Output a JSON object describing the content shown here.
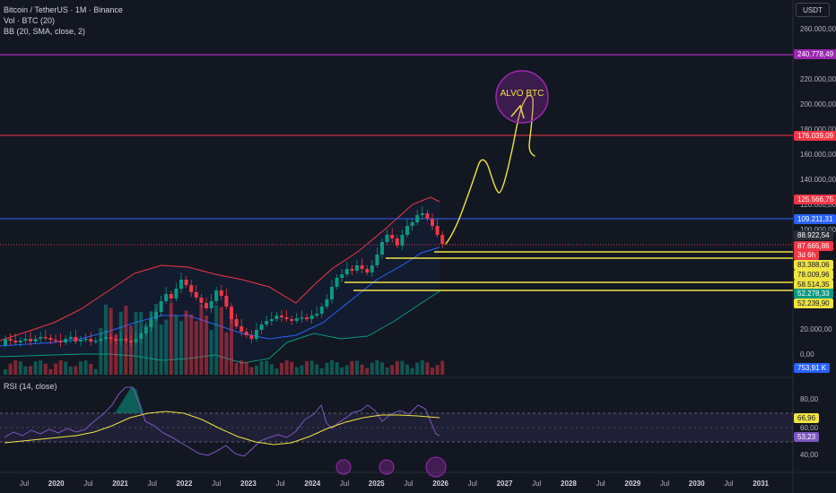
{
  "header": {
    "symbol": "Bitcoin / TetherUS · 1M · Binance",
    "volume": "Vol · BTC (20)",
    "bollinger": "BB (20, SMA, close, 2)",
    "currency": "USDT"
  },
  "rsi": {
    "label": "RSI (14, close)"
  },
  "annotation": {
    "label": "ALVO BTC"
  },
  "price_axis_ticks": [
    "260.000,00",
    "220.000,00",
    "200.000,00",
    "180.000,00",
    "160.000,00",
    "140.000,00",
    "120.000,00",
    "100.000,00",
    "20.000,00",
    "0,00"
  ],
  "rsi_axis_ticks": [
    "80,00",
    "60,00",
    "40,00"
  ],
  "badges": [
    {
      "text": "240.778,49",
      "color": "#9c27b0"
    },
    {
      "text": "176.039,09",
      "color": "#f23645"
    },
    {
      "text": "125.566,75",
      "color": "#f23645"
    },
    {
      "text": "109.211,31",
      "color": "#2962ff"
    },
    {
      "text": "88.922,54",
      "color": "#2a2e39"
    },
    {
      "text": "87.665,86",
      "color": "#f23645"
    },
    {
      "text": "3d 6h",
      "color": "#f23645"
    },
    {
      "text": "83.388,06",
      "color": "#f0e442"
    },
    {
      "text": "78.009,96",
      "color": "#f0e442"
    },
    {
      "text": "58.514,35",
      "color": "#f0e442"
    },
    {
      "text": "52.278,33",
      "color": "#089981"
    },
    {
      "text": "52.239,90",
      "color": "#f0e442"
    },
    {
      "text": "753,91 K",
      "color": "#2962ff"
    },
    {
      "text": "66,96",
      "color": "#f0e442"
    },
    {
      "text": "53,23",
      "color": "#7e57c2"
    }
  ],
  "time_axis": [
    {
      "label": "Jul",
      "year": false
    },
    {
      "label": "2020",
      "year": true
    },
    {
      "label": "Jul",
      "year": false
    },
    {
      "label": "2021",
      "year": true
    },
    {
      "label": "Jul",
      "year": false
    },
    {
      "label": "2022",
      "year": true
    },
    {
      "label": "Jul",
      "year": false
    },
    {
      "label": "2023",
      "year": true
    },
    {
      "label": "Jul",
      "year": false
    },
    {
      "label": "2024",
      "year": true
    },
    {
      "label": "Jul",
      "year": false
    },
    {
      "label": "2025",
      "year": true
    },
    {
      "label": "Jul",
      "year": false
    },
    {
      "label": "2026",
      "year": true
    },
    {
      "label": "Jul",
      "year": false
    },
    {
      "label": "2027",
      "year": true
    },
    {
      "label": "Jul",
      "year": false
    },
    {
      "label": "2028",
      "year": true
    },
    {
      "label": "Jul",
      "year": false
    },
    {
      "label": "2029",
      "year": true
    },
    {
      "label": "Jul",
      "year": false
    },
    {
      "label": "2030",
      "year": true
    },
    {
      "label": "Jul",
      "year": false
    },
    {
      "label": "2031",
      "year": true
    }
  ],
  "colors": {
    "background": "#131722",
    "up": "#089981",
    "down": "#f23645",
    "bb_upper": "#f23645",
    "bb_basis": "#2962ff",
    "bb_lower": "#089981",
    "target_line": "#9c27b0",
    "resistance_line": "#f23645",
    "support_line": "#f0e442",
    "projection": "#f0e442",
    "rsi_line": "#7e57c2",
    "rsi_ma": "#f0e442"
  }
}
